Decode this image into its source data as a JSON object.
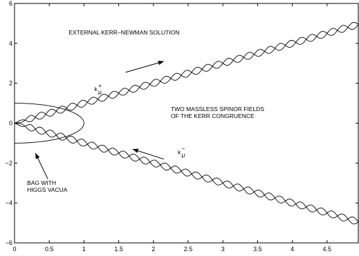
{
  "chart_data": {
    "type": "line",
    "title": "",
    "xlabel": "",
    "ylabel": "",
    "xlim": [
      0,
      4.95
    ],
    "ylim": [
      -6,
      6
    ],
    "x_ticks": [
      0,
      0.5,
      1,
      1.5,
      2,
      2.5,
      3,
      3.5,
      4,
      4.5
    ],
    "x_tick_labels": [
      "0",
      "0.5",
      "1",
      "1.5",
      "2",
      "2.5",
      "3",
      "3.5",
      "4",
      "4.5"
    ],
    "y_ticks": [
      -6,
      -4,
      -2,
      0,
      2,
      4,
      6
    ],
    "y_tick_labels": [
      "−6",
      "−4",
      "−2",
      "0",
      "2",
      "4",
      "6"
    ],
    "grid": false,
    "curves": {
      "upper_helix": {
        "center_slope": 1.0,
        "amplitude": 0.17,
        "wavelength": 0.3,
        "x_start": 0,
        "x_end": 4.95
      },
      "lower_helix": {
        "center_slope": -1.0,
        "amplitude": 0.17,
        "wavelength": 0.3,
        "x_start": 0,
        "x_end": 4.95
      },
      "bag_ellipse": {
        "center": [
          0,
          0
        ],
        "semi_axis_x": 1.0,
        "semi_axis_y": 1.0
      }
    },
    "annotations": [
      {
        "id": "external",
        "lines": [
          "EXTERNAL KERR−NEWMAN SOLUTION"
        ],
        "x": 0.78,
        "y": 4.45
      },
      {
        "id": "k-plus",
        "base": "k",
        "sup": "+",
        "sub": "μ",
        "x": 1.15,
        "y": 1.6
      },
      {
        "id": "two-massless",
        "lines": [
          "TWO MASSLESS SPINOR FIELDS",
          "OF THE KERR CONGRUENCE"
        ],
        "x": 2.25,
        "y": 0.6
      },
      {
        "id": "k-minus",
        "base": "k",
        "sup": "−",
        "sub": "μ",
        "x": 2.35,
        "y": -1.55
      },
      {
        "id": "bag",
        "lines": [
          "BAG WITH",
          "HIGGS VACUA"
        ],
        "x": 0.18,
        "y": -3.1
      }
    ],
    "arrows": [
      {
        "id": "arrow-upper",
        "from": [
          1.6,
          2.55
        ],
        "to": [
          2.15,
          3.1
        ]
      },
      {
        "id": "arrow-lower",
        "from": [
          2.15,
          -1.8
        ],
        "to": [
          1.7,
          -1.3
        ]
      },
      {
        "id": "arrow-bag",
        "from": [
          0.48,
          -2.8
        ],
        "to": [
          0.3,
          -1.5
        ]
      }
    ]
  }
}
